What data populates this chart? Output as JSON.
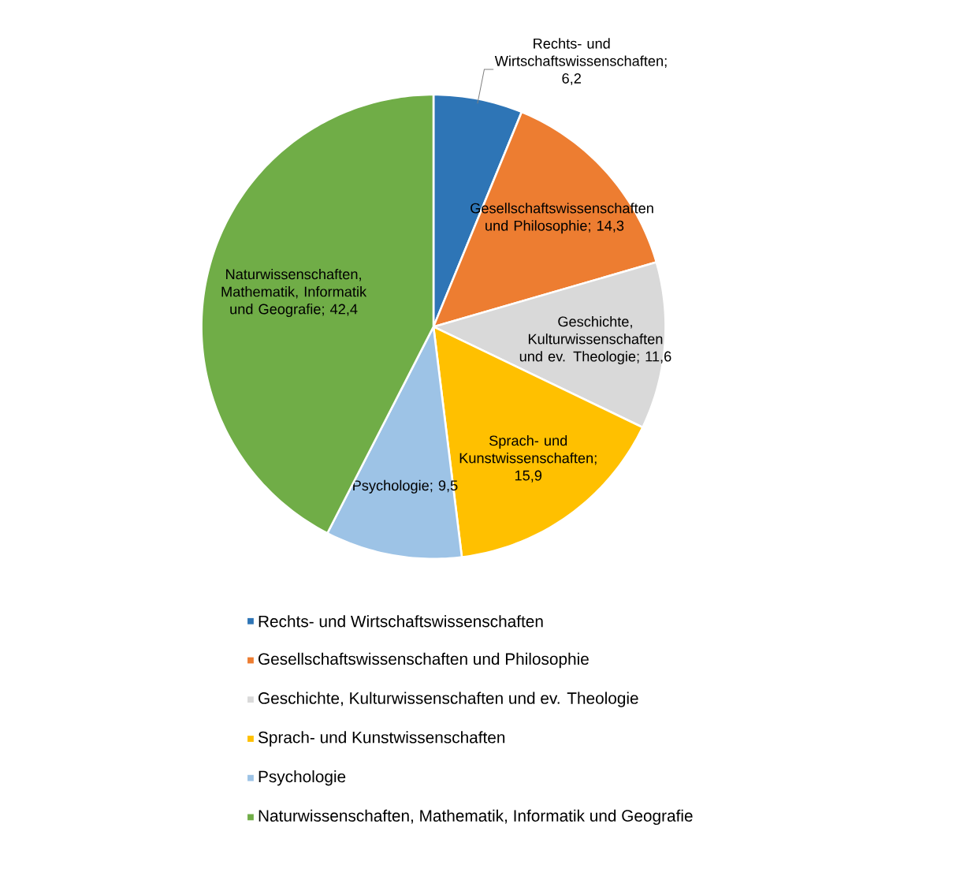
{
  "chart_data": {
    "type": "pie",
    "categories": [
      "Rechts- und Wirtschaftswissenschaften",
      "Gesellschaftswissenschaften und Philosophie",
      "Geschichte, Kulturwissenschaften und ev. Theologie",
      "Sprach- und Kunstwissenschaften",
      "Psychologie",
      "Naturwissenschaften, Mathematik, Informatik und Geografie"
    ],
    "values": [
      6.2,
      14.3,
      11.6,
      15.9,
      9.5,
      42.4
    ],
    "colors": [
      "#2e75b6",
      "#ed7d31",
      "#d9d9d9",
      "#ffc000",
      "#9dc3e6",
      "#70ad47"
    ],
    "value_labels": [
      "; 6,2",
      "; 14,3",
      "; 11,6",
      "; 15,9",
      "; 9,5",
      "; 42,4"
    ],
    "legend": "bottom"
  }
}
